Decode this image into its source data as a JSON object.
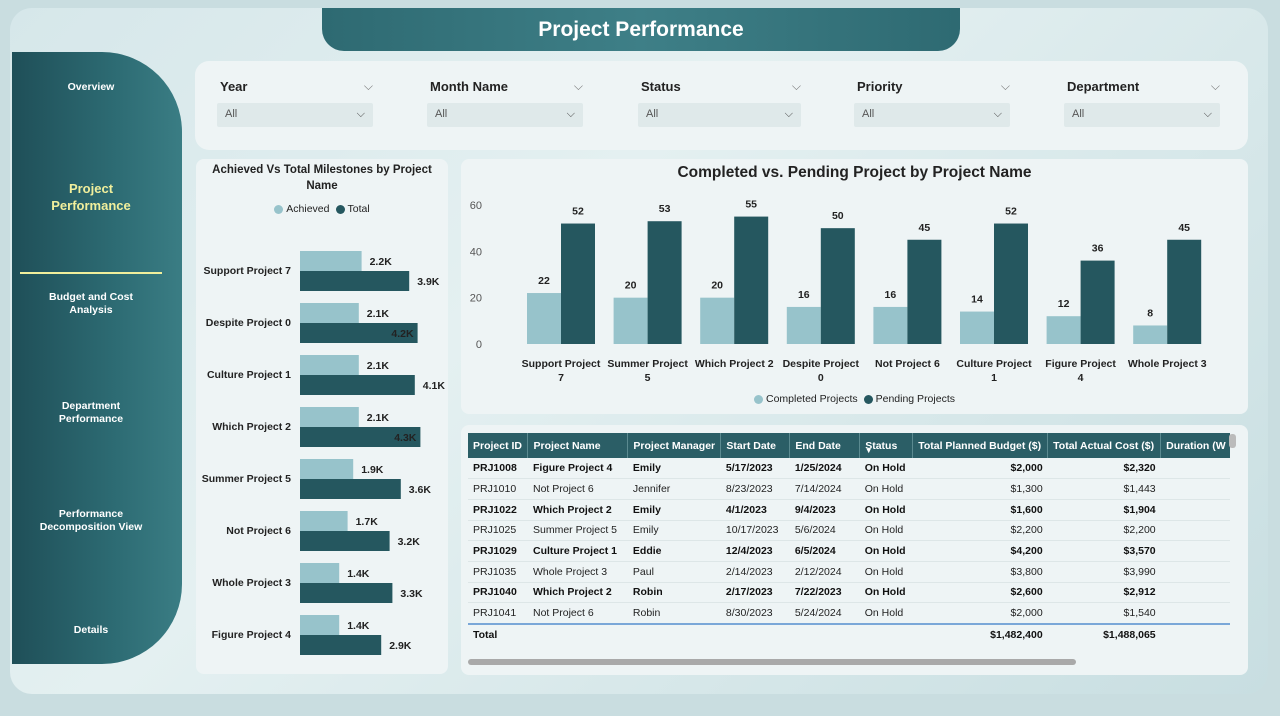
{
  "title": "Project Performance",
  "nav": [
    {
      "label": "Overview"
    },
    {
      "label": "Project Performance"
    },
    {
      "label": "Budget and Cost Analysis"
    },
    {
      "label": "Department Performance"
    },
    {
      "label": "Performance Decomposition View"
    },
    {
      "label": "Details"
    }
  ],
  "filters": [
    {
      "label": "Year",
      "value": "All"
    },
    {
      "label": "Month Name",
      "value": "All"
    },
    {
      "label": "Status",
      "value": "All"
    },
    {
      "label": "Priority",
      "value": "All"
    },
    {
      "label": "Department",
      "value": "All"
    }
  ],
  "colors": {
    "light": "#97c3cb",
    "dark": "#25575f",
    "accent": "#f1ef9c"
  },
  "chart_data": [
    {
      "type": "bar",
      "orientation": "horizontal",
      "title": "Achieved Vs Total Milestones by Project Name",
      "categories": [
        "Support Project 7",
        "Despite Project 0",
        "Culture Project 1",
        "Which Project 2",
        "Summer Project 5",
        "Not Project 6",
        "Whole Project 3",
        "Figure Project 4"
      ],
      "series": [
        {
          "name": "Achieved",
          "values": [
            2200,
            2100,
            2100,
            2100,
            1900,
            1700,
            1400,
            1400
          ],
          "labels": [
            "2.2K",
            "2.1K",
            "2.1K",
            "2.1K",
            "1.9K",
            "1.7K",
            "1.4K",
            "1.4K"
          ]
        },
        {
          "name": "Total",
          "values": [
            3900,
            4200,
            4100,
            4300,
            3600,
            3200,
            3300,
            2900
          ],
          "labels": [
            "3.9K",
            "4.2K",
            "4.1K",
            "4.3K",
            "3.6K",
            "3.2K",
            "3.3K",
            "2.9K"
          ]
        }
      ],
      "xlim": [
        0,
        4500
      ],
      "legend": "top"
    },
    {
      "type": "bar",
      "orientation": "vertical",
      "title": "Completed vs. Pending Project by Project Name",
      "categories": [
        "Support Project 7",
        "Summer Project 5",
        "Which Project 2",
        "Despite Project 0",
        "Not Project 6",
        "Culture Project 1",
        "Figure Project 4",
        "Whole Project 3"
      ],
      "series": [
        {
          "name": "Completed Projects",
          "values": [
            22,
            20,
            20,
            16,
            16,
            14,
            12,
            8
          ]
        },
        {
          "name": "Pending Projects",
          "values": [
            52,
            53,
            55,
            50,
            45,
            52,
            36,
            45
          ]
        }
      ],
      "yticks": [
        "0",
        "20",
        "40",
        "60"
      ],
      "ylim": [
        0,
        60
      ],
      "legend": "bottom"
    }
  ],
  "table": {
    "headers": [
      "Project ID",
      "Project Name",
      "Project Manager",
      "Start Date",
      "End Date",
      "Status",
      "Total Planned Budget ($)",
      "Total Actual Cost ($)",
      "Duration (W"
    ],
    "rows": [
      [
        "PRJ1008",
        "Figure Project 4",
        "Emily",
        "5/17/2023",
        "1/25/2024",
        "On Hold",
        "$2,000",
        "$2,320",
        ""
      ],
      [
        "PRJ1010",
        "Not Project 6",
        "Jennifer",
        "8/23/2023",
        "7/14/2024",
        "On Hold",
        "$1,300",
        "$1,443",
        ""
      ],
      [
        "PRJ1022",
        "Which Project 2",
        "Emily",
        "4/1/2023",
        "9/4/2023",
        "On Hold",
        "$1,600",
        "$1,904",
        ""
      ],
      [
        "PRJ1025",
        "Summer Project 5",
        "Emily",
        "10/17/2023",
        "5/6/2024",
        "On Hold",
        "$2,200",
        "$2,200",
        ""
      ],
      [
        "PRJ1029",
        "Culture Project 1",
        "Eddie",
        "12/4/2023",
        "6/5/2024",
        "On Hold",
        "$4,200",
        "$3,570",
        ""
      ],
      [
        "PRJ1035",
        "Whole Project 3",
        "Paul",
        "2/14/2023",
        "2/12/2024",
        "On Hold",
        "$3,800",
        "$3,990",
        ""
      ],
      [
        "PRJ1040",
        "Which Project 2",
        "Robin",
        "2/17/2023",
        "7/22/2023",
        "On Hold",
        "$2,600",
        "$2,912",
        ""
      ],
      [
        "PRJ1041",
        "Not Project 6",
        "Robin",
        "8/30/2023",
        "5/24/2024",
        "On Hold",
        "$2,000",
        "$1,540",
        ""
      ]
    ],
    "total": {
      "label": "Total",
      "planned": "$1,482,400",
      "actual": "$1,488,065"
    }
  }
}
